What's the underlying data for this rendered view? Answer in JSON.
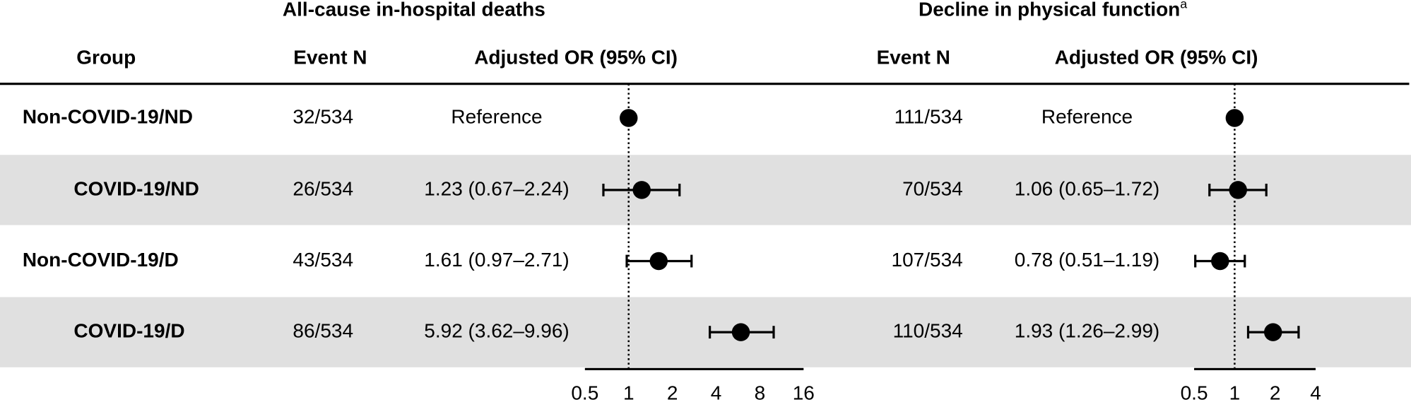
{
  "group_header": "Group",
  "groups": [
    "Non-COVID-19/ND",
    "COVID-19/ND",
    "Non-COVID-19/D",
    "COVID-19/D"
  ],
  "chart_data": [
    {
      "type": "forest",
      "title": "All-cause in-hospital deaths",
      "event_header": "Event N",
      "or_header": "Adjusted OR (95% CI)",
      "events": [
        "32/534",
        "26/534",
        "43/534",
        "86/534"
      ],
      "series": [
        {
          "values": [
            1,
            1.23,
            1.61,
            5.92
          ],
          "lower": [
            null,
            0.67,
            0.97,
            3.62
          ],
          "upper": [
            null,
            2.24,
            2.71,
            9.96
          ],
          "value_labels": [
            "Reference",
            "1.23 (0.67–2.24)",
            "1.61 (0.97–2.71)",
            "5.92 (3.62–9.96)"
          ],
          "color": "#000000"
        }
      ],
      "xlim": [
        0.5,
        16
      ],
      "xticks": [
        0.5,
        1,
        2,
        4,
        8,
        16
      ],
      "log_scale": true,
      "reference_line": 1
    },
    {
      "type": "forest",
      "title": "Decline in physical function",
      "title_note": "a",
      "event_header": "Event N",
      "or_header": "Adjusted OR (95% CI)",
      "events": [
        "111/534",
        "70/534",
        "107/534",
        "110/534"
      ],
      "series": [
        {
          "values": [
            1,
            1.06,
            0.78,
            1.93
          ],
          "lower": [
            null,
            0.65,
            0.51,
            1.26
          ],
          "upper": [
            null,
            1.72,
            1.19,
            2.99
          ],
          "value_labels": [
            "Reference",
            "1.06 (0.65–1.72)",
            "0.78 (0.51–1.19)",
            "1.93 (1.26–2.99)"
          ],
          "color": "#000000"
        }
      ],
      "xlim": [
        0.5,
        4
      ],
      "xticks": [
        0.5,
        1,
        2,
        4
      ],
      "log_scale": true,
      "reference_line": 1
    }
  ]
}
